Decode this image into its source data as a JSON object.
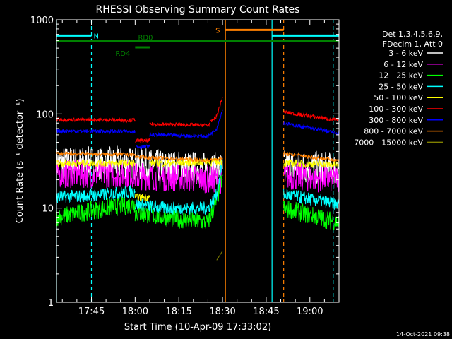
{
  "chart_data": {
    "type": "line",
    "title": "RHESSI Observing Summary Count Rates",
    "xlabel": "Start Time (10-Apr-09 17:33:02)",
    "ylabel": "Count Rate (s⁻¹ detector⁻¹)",
    "y_scale": "log",
    "ylim": [
      1,
      1000
    ],
    "xlim_minutes_after_1730": [
      3,
      100
    ],
    "x_ticks": [
      {
        "label": "17:45",
        "minute": 15
      },
      {
        "label": "18:00",
        "minute": 30
      },
      {
        "label": "18:15",
        "minute": 45
      },
      {
        "label": "18:30",
        "minute": 60
      },
      {
        "label": "18:45",
        "minute": 75
      },
      {
        "label": "19:00",
        "minute": 90
      }
    ],
    "y_ticks": [
      {
        "label": "1",
        "value": 1
      },
      {
        "label": "10",
        "value": 10
      },
      {
        "label": "100",
        "value": 100
      },
      {
        "label": "1000",
        "value": 1000
      }
    ],
    "legend_header": [
      "Det 1,3,4,5,6,9,",
      "FDecim 1, Att 0"
    ],
    "legend_position": "right",
    "series": [
      {
        "name": "3 - 6 keV",
        "color": "#ffffff",
        "segments": [
          {
            "x": [
              3,
              30
            ],
            "y": [
              30,
              30
            ],
            "noise": 0.18
          },
          {
            "x": [
              30,
              35,
              60
            ],
            "y": [
              30,
              28,
              26
            ],
            "noise": 0.18
          },
          {
            "x": [
              81,
              100
            ],
            "y": [
              28,
              26
            ],
            "noise": 0.18
          }
        ]
      },
      {
        "name": "6 - 12 keV",
        "color": "#ff00ff",
        "segments": [
          {
            "x": [
              3,
              30
            ],
            "y": [
              23,
              23
            ],
            "noise": 0.15
          },
          {
            "x": [
              30,
              60
            ],
            "y": [
              22,
              20
            ],
            "noise": 0.15
          },
          {
            "x": [
              81,
              100
            ],
            "y": [
              22,
              20
            ],
            "noise": 0.15
          }
        ]
      },
      {
        "name": "12 - 25 keV",
        "color": "#00ff00",
        "segments": [
          {
            "x": [
              3,
              20,
              30
            ],
            "y": [
              8,
              10,
              11
            ],
            "noise": 0.1
          },
          {
            "x": [
              30,
              40,
              55,
              58,
              60
            ],
            "y": [
              9,
              8,
              7,
              12,
              22
            ],
            "noise": 0.1
          },
          {
            "x": [
              81,
              100
            ],
            "y": [
              10,
              7
            ],
            "noise": 0.1
          }
        ]
      },
      {
        "name": "25 - 50 keV",
        "color": "#00ffff",
        "segments": [
          {
            "x": [
              3,
              20,
              30
            ],
            "y": [
              13,
              14,
              15
            ],
            "noise": 0.07
          },
          {
            "x": [
              30,
              40,
              55,
              58,
              60
            ],
            "y": [
              11,
              10,
              10,
              14,
              32
            ],
            "noise": 0.07
          },
          {
            "x": [
              81,
              100
            ],
            "y": [
              14,
              11
            ],
            "noise": 0.07
          }
        ]
      },
      {
        "name": "50 - 100 keV",
        "color": "#ffff00",
        "segments": [
          {
            "x": [
              3,
              30
            ],
            "y": [
              30,
              30
            ],
            "noise": 0.04
          },
          {
            "x": [
              30,
              35
            ],
            "y": [
              13,
              13
            ],
            "noise": 0.04
          },
          {
            "x": [
              35,
              60
            ],
            "y": [
              30,
              31
            ],
            "noise": 0.04
          },
          {
            "x": [
              81,
              100
            ],
            "y": [
              30,
              29
            ],
            "noise": 0.04
          }
        ]
      },
      {
        "name": "100 - 300 keV",
        "color": "#ff0000",
        "segments": [
          {
            "x": [
              3,
              30
            ],
            "y": [
              87,
              86
            ],
            "noise": 0.02
          },
          {
            "x": [
              30,
              35
            ],
            "y": [
              52,
              52
            ],
            "noise": 0.02
          },
          {
            "x": [
              35,
              55,
              58,
              60
            ],
            "y": [
              78,
              76,
              95,
              150
            ],
            "noise": 0.02
          },
          {
            "x": [
              81,
              100
            ],
            "y": [
              105,
              85
            ],
            "noise": 0.02
          }
        ]
      },
      {
        "name": "300 - 800 keV",
        "color": "#0000ff",
        "segments": [
          {
            "x": [
              3,
              30
            ],
            "y": [
              66,
              65
            ],
            "noise": 0.02
          },
          {
            "x": [
              30,
              35
            ],
            "y": [
              45,
              45
            ],
            "noise": 0.02
          },
          {
            "x": [
              35,
              55,
              58,
              60
            ],
            "y": [
              60,
              58,
              70,
              110
            ],
            "noise": 0.02
          },
          {
            "x": [
              81,
              100
            ],
            "y": [
              80,
              62
            ],
            "noise": 0.02
          }
        ]
      },
      {
        "name": "800 - 7000 keV",
        "color": "#ff8000",
        "segments": [
          {
            "x": [
              3,
              30
            ],
            "y": [
              38,
              37
            ],
            "noise": 0.02
          },
          {
            "x": [
              30,
              55,
              60
            ],
            "y": [
              35,
              32,
              34
            ],
            "noise": 0.02
          },
          {
            "x": [
              81,
              100
            ],
            "y": [
              38,
              32
            ],
            "noise": 0.02
          }
        ]
      },
      {
        "name": "7000 - 15000 keV",
        "color": "#808000",
        "segments": [
          {
            "x": [
              58,
              60
            ],
            "y": [
              2.8,
              3.5
            ],
            "noise": 0.0
          }
        ]
      }
    ],
    "vertical_markers": [
      {
        "minute": 3,
        "color": "#00ffff",
        "style": "solid"
      },
      {
        "minute": 15,
        "color": "#00ffff",
        "style": "dashed"
      },
      {
        "minute": 61,
        "color": "#ff8000",
        "style": "solid"
      },
      {
        "minute": 77,
        "color": "#00ffff",
        "style": "solid"
      },
      {
        "minute": 81,
        "color": "#ff8000",
        "style": "dashed"
      },
      {
        "minute": 98,
        "color": "#00ffff",
        "style": "dashed"
      }
    ],
    "annotations": [
      {
        "label": "N",
        "color": "#00ffff",
        "x_range": [
          3,
          15
        ],
        "y": 680
      },
      {
        "label": "",
        "color": "#00ffff",
        "x_range": [
          77,
          100
        ],
        "y": 680
      },
      {
        "label": "S",
        "color": "#ff8000",
        "x_range": [
          61,
          81
        ],
        "y": 780
      },
      {
        "label": "RD0",
        "color": "#008000",
        "x_range": [
          3,
          100
        ],
        "y": 590
      },
      {
        "label": "RD4",
        "color": "#008000",
        "x_range": [
          30,
          35
        ],
        "y": 510
      }
    ],
    "footer_timestamp": "14-Oct-2021 09:38"
  }
}
